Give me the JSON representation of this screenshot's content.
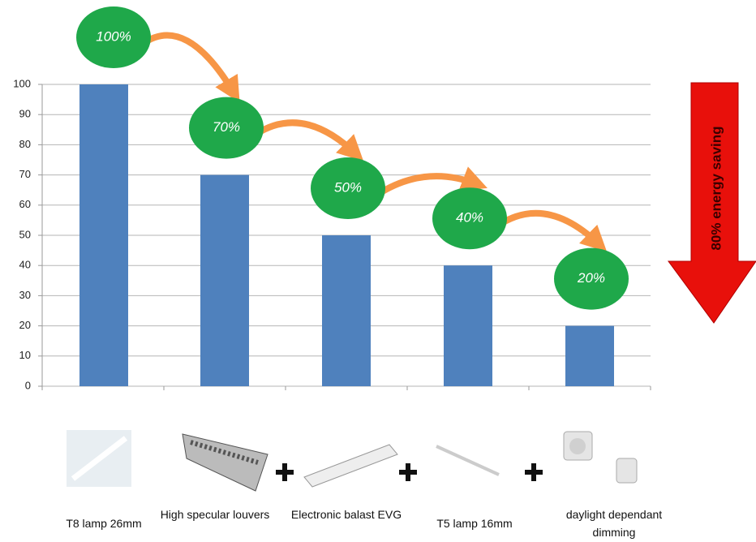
{
  "chart_data": {
    "type": "bar",
    "categories": [
      "T8 lamp 26mm",
      "High specular louvers",
      "Electronic balast EVG",
      "T5 lamp 16mm",
      "daylight dependant dimming"
    ],
    "values": [
      100,
      70,
      50,
      40,
      20
    ],
    "value_labels": [
      "100%",
      "70%",
      "50%",
      "40%",
      "20%"
    ],
    "color": "#4f81bd",
    "ylim": [
      0,
      100
    ],
    "yticks": [
      0,
      10,
      20,
      30,
      40,
      50,
      60,
      70,
      80,
      90,
      100
    ],
    "grid": true,
    "annotation": "80% energy saving"
  }
}
